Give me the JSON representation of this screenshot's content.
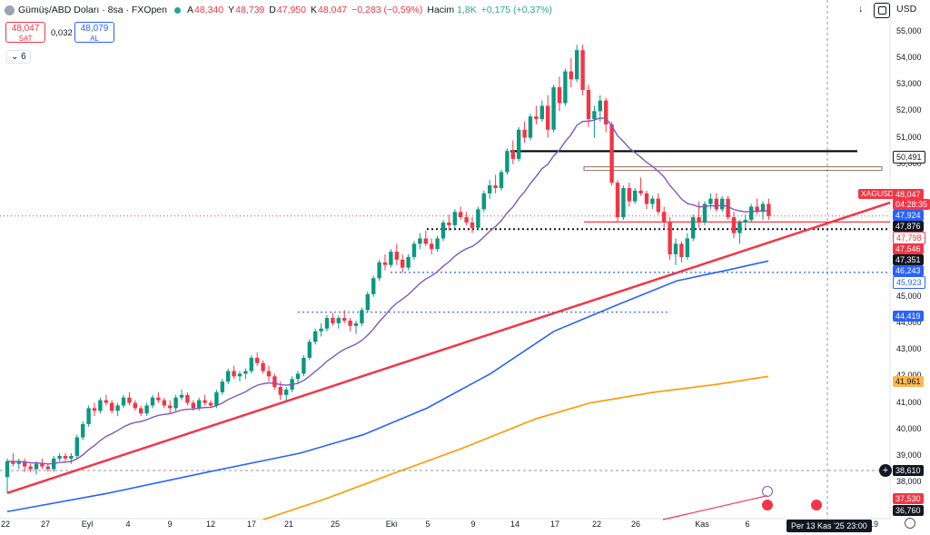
{
  "header": {
    "symbol": "Gümüş/ABD Doları · 8sa · FXOpen",
    "o_key": "A",
    "o_val": "48,340",
    "h_key": "Y",
    "h_val": "48,739",
    "l_key": "D",
    "l_val": "47,950",
    "c_key": "K",
    "c_val": "48,047",
    "change": "−0,283 (−0,59%)",
    "vol_key": "Hacim",
    "vol_val": "1,8K",
    "vol_change": "+0,175 (+0,37%)"
  },
  "trade": {
    "sell_price": "48,047",
    "sell_label": "SAT",
    "spread": "0,032",
    "buy_price": "48,079",
    "buy_label": "AL"
  },
  "indicators_toggle": "6",
  "top_right": {
    "currency": "USD"
  },
  "x_axis": {
    "ticks": [
      "22",
      "27",
      "Eyl",
      "4",
      "9",
      "12",
      "17",
      "21",
      "25",
      "Eki",
      "5",
      "9",
      "14",
      "17",
      "22",
      "26",
      "Kas",
      "6",
      "19"
    ],
    "crosshair_date": "Per 13 Kas '25   23:00"
  },
  "y_axis": {
    "ticks": [
      "55,000",
      "54,000",
      "53,000",
      "52,000",
      "51,000",
      "50,000",
      "45,000",
      "44,000",
      "43,000",
      "42,000",
      "41,000",
      "40,000",
      "39,000",
      "38,000"
    ]
  },
  "price_labels": {
    "symbol_tag": "XAGUSD",
    "last": "48,047",
    "countdown": "04:28:35",
    "ma_short": "47,924",
    "l1": "47,876",
    "l2": "47,798",
    "l3": "47,546",
    "l4": "47,351",
    "ma_mid": "46,243",
    "l5": "45,923",
    "l6": "44,419",
    "ma_long": "41,961",
    "crosshair": "38,610",
    "trend": "37,530",
    "bottom": "36,760",
    "black_line": "50,491"
  },
  "chart_data": {
    "type": "candlestick",
    "ylim": [
      36.6,
      55.3
    ],
    "colors": {
      "up": "#089981",
      "down": "#f23645",
      "ma_purple": "#7e57c2",
      "ma_blue": "#2962ff",
      "ma_orange": "#ff9800",
      "trend": "#f23645"
    },
    "candles": [
      [
        38.2,
        38.9,
        37.6,
        38.8
      ],
      [
        38.8,
        39.1,
        38.6,
        38.7
      ],
      [
        38.7,
        38.9,
        38.5,
        38.8
      ],
      [
        38.8,
        38.9,
        38.4,
        38.6
      ],
      [
        38.6,
        38.7,
        38.4,
        38.5
      ],
      [
        38.5,
        38.8,
        38.3,
        38.7
      ],
      [
        38.7,
        38.9,
        38.5,
        38.6
      ],
      [
        38.6,
        38.7,
        38.4,
        38.5
      ],
      [
        38.5,
        39.0,
        38.4,
        38.9
      ],
      [
        38.9,
        39.1,
        38.8,
        39.0
      ],
      [
        39.0,
        39.1,
        38.8,
        38.9
      ],
      [
        38.9,
        39.1,
        38.7,
        39.0
      ],
      [
        39.0,
        39.8,
        38.9,
        39.7
      ],
      [
        39.7,
        40.3,
        39.6,
        40.2
      ],
      [
        40.2,
        40.9,
        40.1,
        40.8
      ],
      [
        40.8,
        41.0,
        40.5,
        40.7
      ],
      [
        40.7,
        41.2,
        40.6,
        41.1
      ],
      [
        41.1,
        41.3,
        40.9,
        41.0
      ],
      [
        41.0,
        41.1,
        40.6,
        40.7
      ],
      [
        40.7,
        41.0,
        40.5,
        40.9
      ],
      [
        40.9,
        41.3,
        40.8,
        41.2
      ],
      [
        41.2,
        41.4,
        40.9,
        41.0
      ],
      [
        41.0,
        41.1,
        40.7,
        40.8
      ],
      [
        40.8,
        40.9,
        40.5,
        40.6
      ],
      [
        40.6,
        41.0,
        40.5,
        40.9
      ],
      [
        40.9,
        41.3,
        40.8,
        41.2
      ],
      [
        41.2,
        41.4,
        41.0,
        41.1
      ],
      [
        41.1,
        41.2,
        40.8,
        40.9
      ],
      [
        40.9,
        41.1,
        40.6,
        40.8
      ],
      [
        40.8,
        41.3,
        40.7,
        41.2
      ],
      [
        41.2,
        41.5,
        41.1,
        41.3
      ],
      [
        41.3,
        41.4,
        40.9,
        41.0
      ],
      [
        41.0,
        41.1,
        40.7,
        40.8
      ],
      [
        40.8,
        41.2,
        40.7,
        41.1
      ],
      [
        41.1,
        41.3,
        40.9,
        41.0
      ],
      [
        41.0,
        41.1,
        40.8,
        40.9
      ],
      [
        40.9,
        41.5,
        40.8,
        41.4
      ],
      [
        41.4,
        41.9,
        41.3,
        41.8
      ],
      [
        41.8,
        42.3,
        41.7,
        42.2
      ],
      [
        42.2,
        42.4,
        41.9,
        42.0
      ],
      [
        42.0,
        42.2,
        41.8,
        42.1
      ],
      [
        42.1,
        42.3,
        41.9,
        42.2
      ],
      [
        42.2,
        42.8,
        42.1,
        42.7
      ],
      [
        42.7,
        42.9,
        42.4,
        42.5
      ],
      [
        42.5,
        42.6,
        42.1,
        42.2
      ],
      [
        42.2,
        42.4,
        41.8,
        42.0
      ],
      [
        42.0,
        42.1,
        41.5,
        41.6
      ],
      [
        41.6,
        41.8,
        41.1,
        41.3
      ],
      [
        41.3,
        41.6,
        41.1,
        41.5
      ],
      [
        41.5,
        42.0,
        41.4,
        41.9
      ],
      [
        41.9,
        42.2,
        41.7,
        42.1
      ],
      [
        42.1,
        42.8,
        42.0,
        42.7
      ],
      [
        42.7,
        43.4,
        42.6,
        43.3
      ],
      [
        43.3,
        43.8,
        43.2,
        43.7
      ],
      [
        43.7,
        44.0,
        43.5,
        43.8
      ],
      [
        43.8,
        44.3,
        43.7,
        44.2
      ],
      [
        44.2,
        44.4,
        43.9,
        44.0
      ],
      [
        44.0,
        44.3,
        43.8,
        44.2
      ],
      [
        44.2,
        44.5,
        44.0,
        44.1
      ],
      [
        44.1,
        44.2,
        43.7,
        43.9
      ],
      [
        43.9,
        44.1,
        43.6,
        44.0
      ],
      [
        44.0,
        44.6,
        43.9,
        44.5
      ],
      [
        44.5,
        45.2,
        44.4,
        45.1
      ],
      [
        45.1,
        45.8,
        45.0,
        45.7
      ],
      [
        45.7,
        46.4,
        45.6,
        46.3
      ],
      [
        46.3,
        46.6,
        46.0,
        46.2
      ],
      [
        46.2,
        46.8,
        46.1,
        46.7
      ],
      [
        46.7,
        47.0,
        46.2,
        46.4
      ],
      [
        46.4,
        46.6,
        45.9,
        46.1
      ],
      [
        46.1,
        46.6,
        46.0,
        46.5
      ],
      [
        46.5,
        47.1,
        46.4,
        47.0
      ],
      [
        47.0,
        47.4,
        46.8,
        47.2
      ],
      [
        47.2,
        47.5,
        46.9,
        47.0
      ],
      [
        47.0,
        47.2,
        46.6,
        46.8
      ],
      [
        46.8,
        47.3,
        46.7,
        47.2
      ],
      [
        47.2,
        47.9,
        47.1,
        47.8
      ],
      [
        47.8,
        48.1,
        47.5,
        47.7
      ],
      [
        47.7,
        48.3,
        47.6,
        48.2
      ],
      [
        48.2,
        48.4,
        47.9,
        48.0
      ],
      [
        48.0,
        48.2,
        47.7,
        47.8
      ],
      [
        47.8,
        48.0,
        47.4,
        47.6
      ],
      [
        47.6,
        48.4,
        47.5,
        48.3
      ],
      [
        48.3,
        49.0,
        48.2,
        48.9
      ],
      [
        48.9,
        49.4,
        48.7,
        49.2
      ],
      [
        49.2,
        49.6,
        48.9,
        49.1
      ],
      [
        49.1,
        49.8,
        49.0,
        49.7
      ],
      [
        49.7,
        50.6,
        49.6,
        50.5
      ],
      [
        50.5,
        50.9,
        50.0,
        50.2
      ],
      [
        50.2,
        51.4,
        50.1,
        51.3
      ],
      [
        51.3,
        51.6,
        50.8,
        51.0
      ],
      [
        51.0,
        51.9,
        50.9,
        51.8
      ],
      [
        51.8,
        52.2,
        51.5,
        51.7
      ],
      [
        51.7,
        52.4,
        51.6,
        52.2
      ],
      [
        52.2,
        52.6,
        51.0,
        51.3
      ],
      [
        51.3,
        53.0,
        51.2,
        52.9
      ],
      [
        52.9,
        53.3,
        52.0,
        52.3
      ],
      [
        52.3,
        53.6,
        52.2,
        53.5
      ],
      [
        53.5,
        54.0,
        52.9,
        53.2
      ],
      [
        53.2,
        54.5,
        53.1,
        54.3
      ],
      [
        54.3,
        54.5,
        52.6,
        52.8
      ],
      [
        52.8,
        53.0,
        51.4,
        51.7
      ],
      [
        51.7,
        52.2,
        51.0,
        52.0
      ],
      [
        52.0,
        52.6,
        51.6,
        52.4
      ],
      [
        52.4,
        52.5,
        51.2,
        51.5
      ],
      [
        51.5,
        51.6,
        49.2,
        49.3
      ],
      [
        49.3,
        49.4,
        47.8,
        48.0
      ],
      [
        48.0,
        49.2,
        47.9,
        49.1
      ],
      [
        49.1,
        49.3,
        48.4,
        48.6
      ],
      [
        48.6,
        49.1,
        48.5,
        49.0
      ],
      [
        49.0,
        49.5,
        48.8,
        48.9
      ],
      [
        48.9,
        49.0,
        48.3,
        48.5
      ],
      [
        48.5,
        48.8,
        48.3,
        48.7
      ],
      [
        48.7,
        48.9,
        48.1,
        48.2
      ],
      [
        48.2,
        48.4,
        47.6,
        47.8
      ],
      [
        47.8,
        48.0,
        46.4,
        46.6
      ],
      [
        46.6,
        47.2,
        46.2,
        47.0
      ],
      [
        47.0,
        47.1,
        46.3,
        46.5
      ],
      [
        46.5,
        47.4,
        46.4,
        47.2
      ],
      [
        47.2,
        48.1,
        47.1,
        48.0
      ],
      [
        48.0,
        48.6,
        47.6,
        47.8
      ],
      [
        47.8,
        48.6,
        47.7,
        48.5
      ],
      [
        48.5,
        48.9,
        48.3,
        48.7
      ],
      [
        48.7,
        48.9,
        48.2,
        48.3
      ],
      [
        48.3,
        48.8,
        48.2,
        48.7
      ],
      [
        48.7,
        48.8,
        47.9,
        48.0
      ],
      [
        48.0,
        48.2,
        47.2,
        47.4
      ],
      [
        47.4,
        47.9,
        47.0,
        47.8
      ],
      [
        47.8,
        48.1,
        47.6,
        47.9
      ],
      [
        47.9,
        48.5,
        47.8,
        48.4
      ],
      [
        48.4,
        48.7,
        48.1,
        48.2
      ],
      [
        48.2,
        48.6,
        47.9,
        48.5
      ],
      [
        48.5,
        48.7,
        47.9,
        48.05
      ]
    ]
  }
}
